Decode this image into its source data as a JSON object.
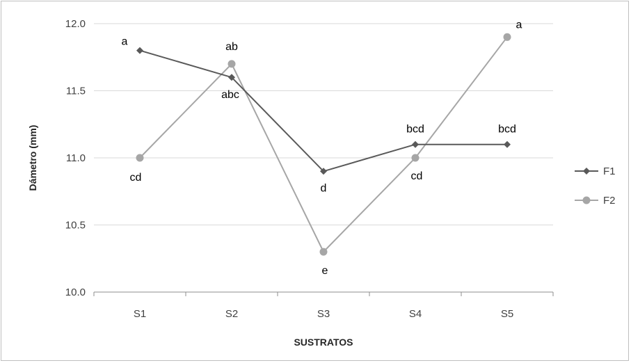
{
  "chart_data": {
    "type": "line",
    "title": "",
    "xlabel": "SUSTRATOS",
    "ylabel": "Dámetro (mm)",
    "categories": [
      "S1",
      "S2",
      "S3",
      "S4",
      "S5"
    ],
    "ylim": [
      10.0,
      12.0
    ],
    "yticks": [
      "10.0",
      "10.5",
      "11.0",
      "11.5",
      "12.0"
    ],
    "grid": true,
    "legend_position": "right",
    "series": [
      {
        "name": "F1",
        "color": "#595959",
        "marker": "diamond",
        "values": [
          11.8,
          11.6,
          10.9,
          11.1,
          11.1
        ],
        "labels": [
          "a",
          "abc",
          "d",
          "bcd",
          "bcd"
        ]
      },
      {
        "name": "F2",
        "color": "#a6a6a6",
        "marker": "circle",
        "values": [
          11.0,
          11.7,
          10.3,
          11.0,
          11.9
        ],
        "labels": [
          "cd",
          "ab",
          "e",
          "cd",
          "a"
        ]
      }
    ]
  }
}
